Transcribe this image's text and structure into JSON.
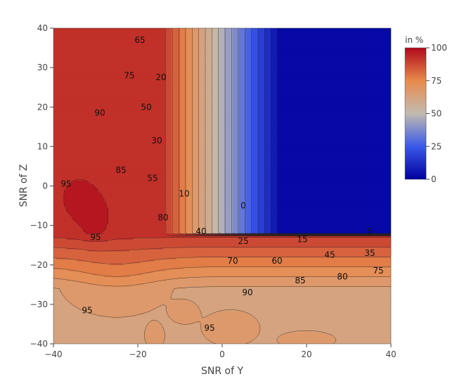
{
  "chart_data": {
    "type": "contour",
    "xlabel": "SNR of Y",
    "ylabel": "SNR of Z",
    "xlim": [
      -40,
      40
    ],
    "ylim": [
      -40,
      40
    ],
    "x_ticks": [
      -40,
      -20,
      0,
      20,
      40
    ],
    "y_ticks": [
      -40,
      -30,
      -20,
      -10,
      0,
      10,
      20,
      30,
      40
    ],
    "x_tick_labels": [
      "−40",
      "−20",
      "0",
      "20",
      "40"
    ],
    "y_tick_labels": [
      "−40",
      "−30",
      "−20",
      "−10",
      "0",
      "10",
      "20",
      "30",
      "40"
    ],
    "grid": false,
    "colorbar": {
      "title": "in %",
      "range": [
        0,
        100
      ],
      "ticks": [
        0,
        25,
        50,
        75,
        100
      ],
      "tick_labels": [
        "0",
        "25",
        "50",
        "75",
        "100"
      ],
      "colorscale": "RdBu-reversed",
      "colors": [
        "#00009e",
        "#3a59e8",
        "#c2bbb0",
        "#e88a4d",
        "#b0091a"
      ]
    },
    "contour_levels": [
      0,
      5,
      10,
      15,
      20,
      25,
      30,
      35,
      40,
      45,
      50,
      55,
      60,
      65,
      70,
      75,
      80,
      85,
      90,
      95,
      100
    ],
    "contour_labels": [
      {
        "text": "65",
        "x": -19.5,
        "y": 37
      },
      {
        "text": "75",
        "x": -22,
        "y": 28
      },
      {
        "text": "20",
        "x": -14.5,
        "y": 27.5
      },
      {
        "text": "90",
        "x": -29,
        "y": 18.5
      },
      {
        "text": "50",
        "x": -18,
        "y": 20
      },
      {
        "text": "30",
        "x": -15.5,
        "y": 11.5
      },
      {
        "text": "85",
        "x": -24,
        "y": 4
      },
      {
        "text": "95",
        "x": -37,
        "y": 0.5
      },
      {
        "text": "55",
        "x": -16.5,
        "y": 2
      },
      {
        "text": "10",
        "x": -9,
        "y": -2
      },
      {
        "text": "0",
        "x": 5,
        "y": -5
      },
      {
        "text": "80",
        "x": -14,
        "y": -8
      },
      {
        "text": "40",
        "x": -5,
        "y": -11.5
      },
      {
        "text": "5",
        "x": 35,
        "y": -11.5
      },
      {
        "text": "95",
        "x": -30,
        "y": -13
      },
      {
        "text": "25",
        "x": 5,
        "y": -14
      },
      {
        "text": "15",
        "x": 19,
        "y": -13.5
      },
      {
        "text": "35",
        "x": 35,
        "y": -17
      },
      {
        "text": "45",
        "x": 25.5,
        "y": -17.5
      },
      {
        "text": "70",
        "x": 2.5,
        "y": -19
      },
      {
        "text": "60",
        "x": 13,
        "y": -19
      },
      {
        "text": "75",
        "x": 37,
        "y": -21.5
      },
      {
        "text": "80",
        "x": 28.5,
        "y": -23
      },
      {
        "text": "85",
        "x": 18.5,
        "y": -24
      },
      {
        "text": "90",
        "x": 6,
        "y": -27
      },
      {
        "text": "95",
        "x": -32,
        "y": -31.5
      },
      {
        "text": "95",
        "x": -3,
        "y": -36
      }
    ],
    "hotspots_95": [
      {
        "cx": -34,
        "cy": -3,
        "rx": 5.5,
        "ry": 7
      },
      {
        "cx": -30,
        "cy": -8,
        "rx": 4,
        "ry": 6
      },
      {
        "cx": -25,
        "cy": -24,
        "rx": 12,
        "ry": 8
      },
      {
        "cx": -9,
        "cy": -32,
        "rx": 3,
        "ry": 2.5
      },
      {
        "cx": 2,
        "cy": -36,
        "rx": 6,
        "ry": 4
      },
      {
        "cx": -16,
        "cy": -38,
        "rx": 2,
        "ry": 3
      },
      {
        "cx": 20,
        "cy": -39,
        "rx": 6,
        "ry": 2
      }
    ]
  }
}
